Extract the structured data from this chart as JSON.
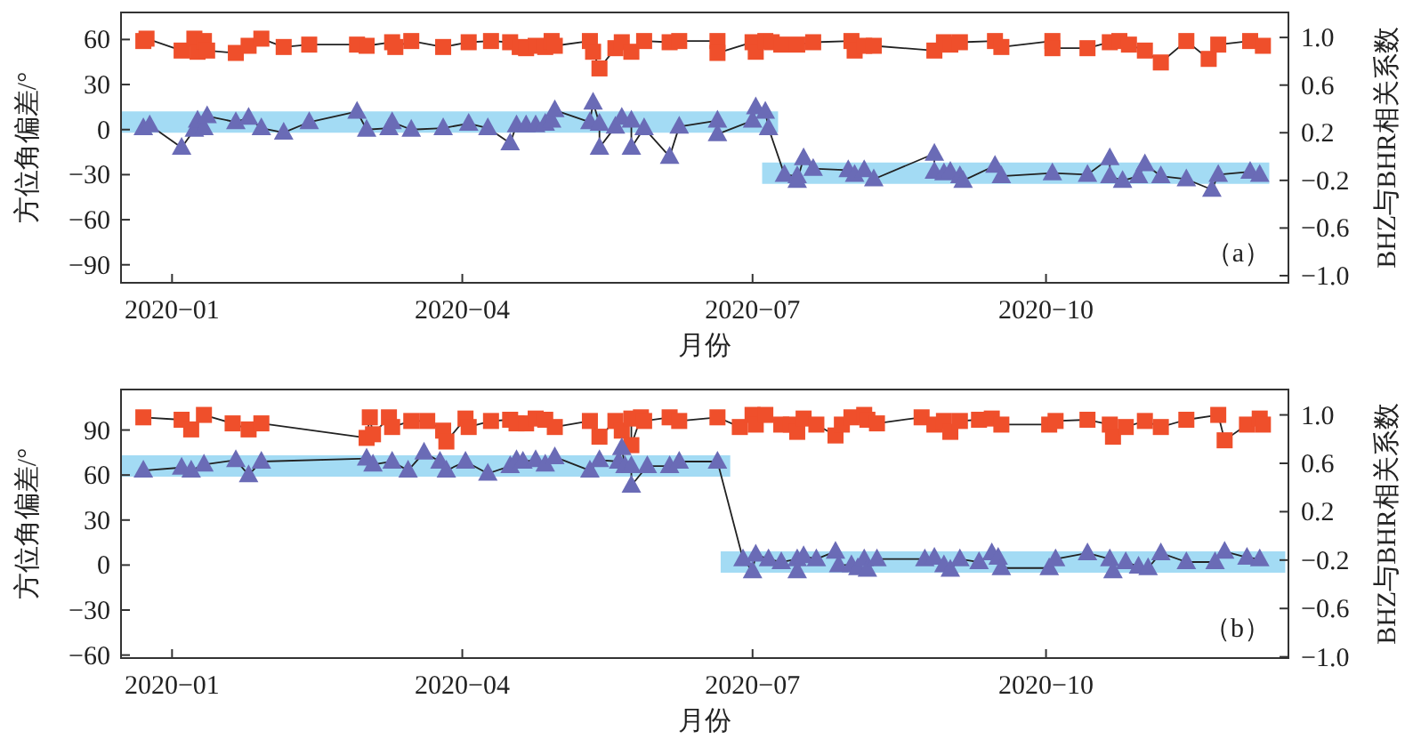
{
  "chart_data": [
    {
      "type": "line",
      "ylabel": "方位角偏差/°",
      "y2label": "BHZ与BHR相关系数",
      "xlabel": "月份",
      "annotations": [
        "（a）"
      ],
      "xlim": [
        "2019-12-16",
        "2020-12-16"
      ],
      "xticks": [
        {
          "value": "2020-01",
          "label": "2020−01"
        },
        {
          "value": "2020-04",
          "label": "2020−04"
        },
        {
          "value": "2020-07",
          "label": "2020−07"
        },
        {
          "value": "2020-10",
          "label": "2020−10"
        }
      ],
      "ylim": [
        -102,
        78
      ],
      "yticks": [
        60,
        30,
        0,
        {
          "value": -30,
          "label": "−30"
        },
        {
          "value": -60,
          "label": "−60"
        },
        {
          "value": -90,
          "label": "−90"
        }
      ],
      "y2lim": [
        -1.06,
        1.21
      ],
      "y2ticks": [
        {
          "value": 1.0,
          "label": "1.0"
        },
        {
          "value": 0.6,
          "label": "0.6"
        },
        {
          "value": 0.2,
          "label": "0.2"
        },
        {
          "value": -0.2,
          "label": "−0.2"
        },
        {
          "value": -0.6,
          "label": "−0.6"
        },
        {
          "value": -1.0,
          "label": "−1.0"
        }
      ],
      "series": [
        {
          "type": "line",
          "marker": "none",
          "color": "#a3dbf4",
          "x": [
            "2019-12-16",
            "2020-07-09"
          ],
          "values": [
            5,
            5
          ]
        },
        {
          "type": "line",
          "marker": "none",
          "color": "#a3dbf4",
          "x": [
            "2020-07-04",
            "2020-12-10"
          ],
          "values": [
            -29,
            -29
          ]
        },
        {
          "type": "line",
          "marker": "square",
          "axis": "y2",
          "color": "#ef4f2b",
          "x": [
            "2019-12-23",
            "2019-12-24",
            "2020-01-04",
            "2020-01-08",
            "2020-01-09",
            "2020-01-11",
            "2020-01-12",
            "2020-01-21",
            "2020-01-25",
            "2020-01-29",
            "2020-02-05",
            "2020-02-13",
            "2020-02-28",
            "2020-03-02",
            "2020-03-10",
            "2020-03-11",
            "2020-03-16",
            "2020-03-26",
            "2020-04-03",
            "2020-04-10",
            "2020-04-16",
            "2020-04-19",
            "2020-04-21",
            "2020-04-24",
            "2020-04-27",
            "2020-04-29",
            "2020-04-30",
            "2020-05-11",
            "2020-05-12",
            "2020-05-14",
            "2020-05-19",
            "2020-05-21",
            "2020-05-24",
            "2020-05-28",
            "2020-06-05",
            "2020-06-08",
            "2020-06-20",
            "2020-06-20",
            "2020-07-01",
            "2020-07-02",
            "2020-07-05",
            "2020-07-07",
            "2020-07-10",
            "2020-07-15",
            "2020-07-20",
            "2020-08-01",
            "2020-08-02",
            "2020-08-05",
            "2020-08-08",
            "2020-08-27",
            "2020-08-30",
            "2020-09-01",
            "2020-09-04",
            "2020-09-15",
            "2020-09-17",
            "2020-10-03",
            "2020-10-03",
            "2020-10-14",
            "2020-10-21",
            "2020-10-24",
            "2020-10-27",
            "2020-11-01",
            "2020-11-06",
            "2020-11-14",
            "2020-11-21",
            "2020-11-24",
            "2020-12-04",
            "2020-12-08"
          ],
          "values": [
            0.97,
            0.99,
            0.89,
            0.99,
            0.88,
            0.97,
            0.89,
            0.87,
            0.93,
            0.99,
            0.92,
            0.94,
            0.94,
            0.93,
            0.96,
            0.92,
            0.97,
            0.92,
            0.96,
            0.97,
            0.96,
            0.92,
            0.91,
            0.93,
            0.92,
            0.97,
            0.93,
            0.97,
            0.88,
            0.74,
            0.91,
            0.96,
            0.88,
            0.97,
            0.96,
            0.97,
            0.97,
            0.87,
            0.96,
            0.88,
            0.97,
            0.96,
            0.94,
            0.94,
            0.96,
            0.97,
            0.89,
            0.93,
            0.93,
            0.89,
            0.96,
            0.94,
            0.96,
            0.97,
            0.92,
            0.97,
            0.91,
            0.91,
            0.96,
            0.97,
            0.94,
            0.89,
            0.79,
            0.97,
            0.82,
            0.94,
            0.97,
            0.93
          ]
        },
        {
          "type": "line",
          "marker": "triangle",
          "color": "#6a6bb6",
          "x": [
            "2019-12-23",
            "2019-12-25",
            "2020-01-04",
            "2020-01-08",
            "2020-01-09",
            "2020-01-11",
            "2020-01-12",
            "2020-01-21",
            "2020-01-25",
            "2020-01-29",
            "2020-02-05",
            "2020-02-13",
            "2020-02-28",
            "2020-03-02",
            "2020-03-09",
            "2020-03-10",
            "2020-03-16",
            "2020-03-26",
            "2020-04-03",
            "2020-04-09",
            "2020-04-16",
            "2020-04-18",
            "2020-04-21",
            "2020-04-24",
            "2020-04-27",
            "2020-04-29",
            "2020-04-30",
            "2020-05-11",
            "2020-05-12",
            "2020-05-14",
            "2020-05-14",
            "2020-05-19",
            "2020-05-21",
            "2020-05-24",
            "2020-05-24",
            "2020-05-28",
            "2020-06-05",
            "2020-06-08",
            "2020-06-20",
            "2020-06-20",
            "2020-07-01",
            "2020-07-02",
            "2020-07-05",
            "2020-07-06",
            "2020-07-11",
            "2020-07-15",
            "2020-07-15",
            "2020-07-17",
            "2020-07-20",
            "2020-07-31",
            "2020-08-02",
            "2020-08-05",
            "2020-08-08",
            "2020-08-27",
            "2020-08-27",
            "2020-08-30",
            "2020-09-01",
            "2020-09-04",
            "2020-09-05",
            "2020-09-15",
            "2020-09-17",
            "2020-10-03",
            "2020-10-14",
            "2020-10-21",
            "2020-10-21",
            "2020-10-25",
            "2020-10-30",
            "2020-11-01",
            "2020-11-06",
            "2020-11-14",
            "2020-11-22",
            "2020-11-24",
            "2020-12-04",
            "2020-12-07"
          ],
          "values": [
            1,
            3,
            -12,
            0,
            6,
            1,
            9,
            5,
            8,
            1,
            -2,
            5,
            12,
            0,
            1,
            5,
            0,
            1,
            4,
            1,
            -9,
            3,
            3,
            3,
            4,
            6,
            13,
            5,
            18,
            4,
            -12,
            2,
            8,
            6,
            -12,
            1,
            -18,
            2,
            6,
            -3,
            6,
            15,
            12,
            1,
            -30,
            -31,
            -34,
            -19,
            -26,
            -27,
            -30,
            -27,
            -33,
            -16,
            -28,
            -29,
            -28,
            -31,
            -34,
            -24,
            -31,
            -29,
            -30,
            -19,
            -31,
            -34,
            -31,
            -23,
            -31,
            -33,
            -40,
            -30,
            -28,
            -30
          ]
        }
      ]
    },
    {
      "type": "line",
      "ylabel": "方位角偏差/°",
      "y2label": "BHZ与BHR相关系数",
      "xlabel": "月份",
      "annotations": [
        "（b）"
      ],
      "xlim": [
        "2019-12-16",
        "2020-12-16"
      ],
      "xticks": [
        {
          "value": "2020-01",
          "label": "2020−01"
        },
        {
          "value": "2020-04",
          "label": "2020−04"
        },
        {
          "value": "2020-07",
          "label": "2020−07"
        },
        {
          "value": "2020-10",
          "label": "2020−10"
        }
      ],
      "ylim": [
        -62,
        117
      ],
      "yticks": [
        90,
        60,
        30,
        0,
        {
          "value": -30,
          "label": "−30"
        },
        {
          "value": -60,
          "label": "−60"
        }
      ],
      "y2lim": [
        -1.01,
        1.21
      ],
      "y2ticks": [
        {
          "value": 1.0,
          "label": "1.0"
        },
        {
          "value": 0.6,
          "label": "0.6"
        },
        {
          "value": 0.2,
          "label": "0.2"
        },
        {
          "value": -0.2,
          "label": "−0.2"
        },
        {
          "value": -0.6,
          "label": "−0.6"
        },
        {
          "value": -1.0,
          "label": "−1.0"
        }
      ],
      "series": [
        {
          "type": "line",
          "marker": "none",
          "color": "#a3dbf4",
          "x": [
            "2019-12-16",
            "2020-06-24"
          ],
          "values": [
            66,
            66
          ]
        },
        {
          "type": "line",
          "marker": "none",
          "color": "#a3dbf4",
          "x": [
            "2020-06-21",
            "2020-12-15"
          ],
          "values": [
            2,
            2
          ]
        },
        {
          "type": "line",
          "marker": "square",
          "axis": "y2",
          "color": "#ef4f2b",
          "x": [
            "2019-12-23",
            "2020-01-04",
            "2020-01-07",
            "2020-01-11",
            "2020-01-20",
            "2020-01-25",
            "2020-01-29",
            "2020-03-02",
            "2020-03-03",
            "2020-03-04",
            "2020-03-09",
            "2020-03-10",
            "2020-03-16",
            "2020-03-21",
            "2020-03-26",
            "2020-03-27",
            "2020-04-02",
            "2020-04-03",
            "2020-04-10",
            "2020-04-16",
            "2020-04-18",
            "2020-04-21",
            "2020-04-24",
            "2020-04-27",
            "2020-04-30",
            "2020-05-11",
            "2020-05-14",
            "2020-05-19",
            "2020-05-21",
            "2020-05-24",
            "2020-05-24",
            "2020-05-27",
            "2020-05-28",
            "2020-06-05",
            "2020-06-08",
            "2020-06-20",
            "2020-06-27",
            "2020-07-01",
            "2020-07-02",
            "2020-07-05",
            "2020-07-10",
            "2020-07-13",
            "2020-07-15",
            "2020-07-17",
            "2020-07-21",
            "2020-07-27",
            "2020-07-29",
            "2020-08-01",
            "2020-08-05",
            "2020-08-06",
            "2020-08-09",
            "2020-08-23",
            "2020-08-27",
            "2020-08-30",
            "2020-09-01",
            "2020-09-04",
            "2020-09-10",
            "2020-09-14",
            "2020-09-17",
            "2020-10-02",
            "2020-10-04",
            "2020-10-14",
            "2020-10-21",
            "2020-10-22",
            "2020-10-26",
            "2020-11-01",
            "2020-11-06",
            "2020-11-14",
            "2020-11-24",
            "2020-11-26",
            "2020-12-03",
            "2020-12-07",
            "2020-12-08"
          ],
          "values": [
            0.98,
            0.96,
            0.88,
            1.0,
            0.93,
            0.88,
            0.93,
            0.81,
            0.98,
            0.84,
            0.98,
            0.9,
            0.95,
            0.95,
            0.87,
            0.78,
            0.97,
            0.9,
            0.95,
            0.96,
            0.93,
            0.93,
            0.97,
            0.96,
            0.9,
            0.95,
            0.82,
            0.95,
            0.87,
            0.97,
            0.75,
            0.98,
            0.95,
            0.98,
            0.95,
            0.98,
            0.9,
            1.0,
            0.92,
            1.0,
            0.92,
            0.92,
            0.86,
            0.97,
            0.92,
            0.83,
            0.92,
            0.98,
            1.0,
            0.96,
            0.93,
            0.98,
            0.92,
            0.95,
            0.86,
            0.95,
            0.96,
            0.97,
            0.92,
            0.92,
            0.95,
            0.96,
            0.92,
            0.82,
            0.9,
            0.95,
            0.9,
            0.96,
            1.0,
            0.79,
            0.92,
            0.97,
            0.92
          ]
        },
        {
          "type": "line",
          "marker": "triangle",
          "color": "#6a6bb6",
          "x": [
            "2019-12-23",
            "2020-01-04",
            "2020-01-07",
            "2020-01-11",
            "2020-01-21",
            "2020-01-25",
            "2020-01-29",
            "2020-03-02",
            "2020-03-04",
            "2020-03-10",
            "2020-03-15",
            "2020-03-20",
            "2020-03-25",
            "2020-03-27",
            "2020-04-02",
            "2020-04-09",
            "2020-04-16",
            "2020-04-18",
            "2020-04-20",
            "2020-04-24",
            "2020-04-27",
            "2020-04-30",
            "2020-05-11",
            "2020-05-14",
            "2020-05-20",
            "2020-05-21",
            "2020-05-22",
            "2020-05-24",
            "2020-05-24",
            "2020-05-29",
            "2020-06-05",
            "2020-06-08",
            "2020-06-20",
            "2020-06-28",
            "2020-07-01",
            "2020-07-02",
            "2020-07-06",
            "2020-07-10",
            "2020-07-15",
            "2020-07-15",
            "2020-07-17",
            "2020-07-21",
            "2020-07-27",
            "2020-07-28",
            "2020-08-01",
            "2020-08-03",
            "2020-08-05",
            "2020-08-06",
            "2020-08-09",
            "2020-08-24",
            "2020-08-27",
            "2020-08-30",
            "2020-09-01",
            "2020-09-04",
            "2020-09-10",
            "2020-09-14",
            "2020-09-16",
            "2020-09-17",
            "2020-10-02",
            "2020-10-04",
            "2020-10-14",
            "2020-10-21",
            "2020-10-22",
            "2020-10-26",
            "2020-10-30",
            "2020-11-02",
            "2020-11-06",
            "2020-11-14",
            "2020-11-23",
            "2020-11-26",
            "2020-12-03",
            "2020-12-07"
          ],
          "values": [
            63,
            65,
            63,
            67,
            70,
            60,
            69,
            71,
            67,
            69,
            63,
            75,
            69,
            63,
            69,
            61,
            66,
            70,
            69,
            70,
            67,
            72,
            63,
            70,
            69,
            78,
            66,
            66,
            53,
            66,
            66,
            69,
            69,
            4,
            -4,
            7,
            4,
            2,
            4,
            -4,
            6,
            4,
            9,
            0,
            0,
            -2,
            4,
            -3,
            4,
            4,
            5,
            0,
            -3,
            4,
            2,
            8,
            5,
            -2,
            -2,
            4,
            8,
            4,
            -4,
            2,
            -1,
            -2,
            8,
            2,
            2,
            9,
            5,
            4
          ]
        }
      ]
    }
  ]
}
